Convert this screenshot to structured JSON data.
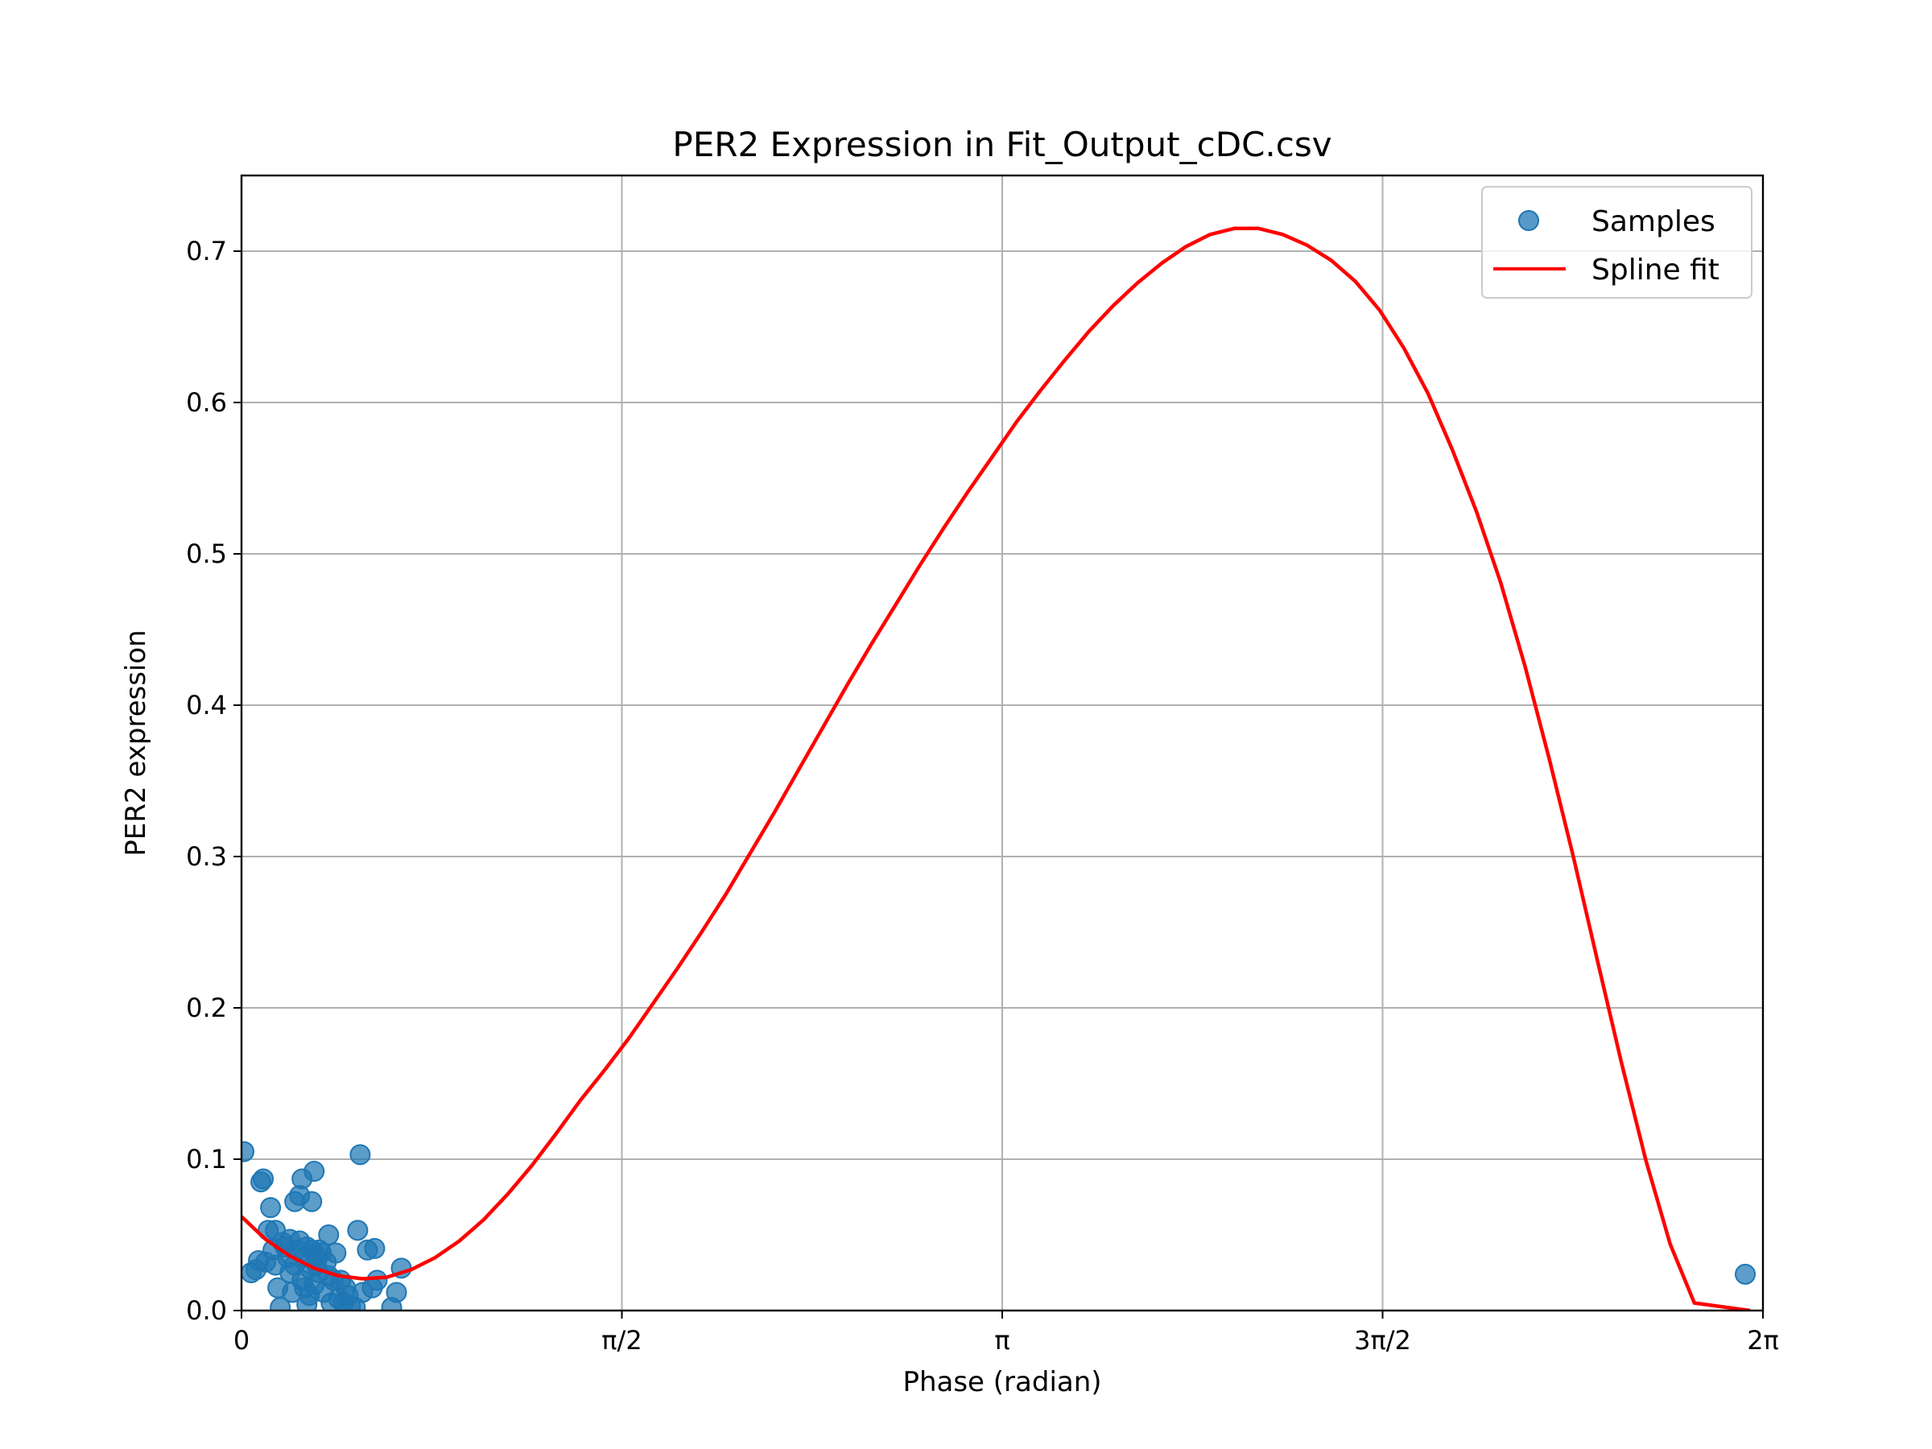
{
  "chart_data": {
    "type": "scatter",
    "title": "PER2 Expression in Fit_Output_cDC.csv",
    "xlabel": "Phase (radian)",
    "ylabel": "PER2 expression",
    "xlim": [
      0,
      6.283185
    ],
    "ylim": [
      0,
      0.75
    ],
    "grid": true,
    "legend_position": "top-right",
    "x_ticks": [
      {
        "value": 0,
        "label": "0"
      },
      {
        "value": 1.570796,
        "label": "π/2"
      },
      {
        "value": 3.141593,
        "label": "π"
      },
      {
        "value": 4.712389,
        "label": "3π/2"
      },
      {
        "value": 6.283185,
        "label": "2π"
      }
    ],
    "y_ticks": [
      {
        "value": 0.0,
        "label": "0.0"
      },
      {
        "value": 0.1,
        "label": "0.1"
      },
      {
        "value": 0.2,
        "label": "0.2"
      },
      {
        "value": 0.3,
        "label": "0.3"
      },
      {
        "value": 0.4,
        "label": "0.4"
      },
      {
        "value": 0.5,
        "label": "0.5"
      },
      {
        "value": 0.6,
        "label": "0.6"
      },
      {
        "value": 0.7,
        "label": "0.7"
      }
    ],
    "series": [
      {
        "name": "Samples",
        "kind": "scatter",
        "color": "#1f77b4",
        "points": [
          [
            0.01,
            0.105
          ],
          [
            0.04,
            0.025
          ],
          [
            0.06,
            0.027
          ],
          [
            0.07,
            0.033
          ],
          [
            0.08,
            0.085
          ],
          [
            0.09,
            0.087
          ],
          [
            0.1,
            0.032
          ],
          [
            0.11,
            0.053
          ],
          [
            0.12,
            0.068
          ],
          [
            0.13,
            0.04
          ],
          [
            0.14,
            0.03
          ],
          [
            0.14,
            0.053
          ],
          [
            0.15,
            0.015
          ],
          [
            0.16,
            0.002
          ],
          [
            0.17,
            0.045
          ],
          [
            0.18,
            0.042
          ],
          [
            0.19,
            0.035
          ],
          [
            0.2,
            0.025
          ],
          [
            0.2,
            0.047
          ],
          [
            0.21,
            0.012
          ],
          [
            0.22,
            0.03
          ],
          [
            0.22,
            0.072
          ],
          [
            0.23,
            0.04
          ],
          [
            0.24,
            0.046
          ],
          [
            0.24,
            0.076
          ],
          [
            0.25,
            0.087
          ],
          [
            0.25,
            0.02
          ],
          [
            0.26,
            0.035
          ],
          [
            0.26,
            0.015
          ],
          [
            0.27,
            0.042
          ],
          [
            0.27,
            0.004
          ],
          [
            0.28,
            0.028
          ],
          [
            0.28,
            0.01
          ],
          [
            0.29,
            0.072
          ],
          [
            0.29,
            0.04
          ],
          [
            0.3,
            0.092
          ],
          [
            0.3,
            0.017
          ],
          [
            0.31,
            0.03
          ],
          [
            0.31,
            0.036
          ],
          [
            0.32,
            0.025
          ],
          [
            0.32,
            0.04
          ],
          [
            0.33,
            0.038
          ],
          [
            0.34,
            0.012
          ],
          [
            0.35,
            0.032
          ],
          [
            0.36,
            0.05
          ],
          [
            0.36,
            0.023
          ],
          [
            0.37,
            0.005
          ],
          [
            0.38,
            0.02
          ],
          [
            0.39,
            0.038
          ],
          [
            0.4,
            0.008
          ],
          [
            0.41,
            0.02
          ],
          [
            0.42,
            0.005
          ],
          [
            0.43,
            0.015
          ],
          [
            0.44,
            0.01
          ],
          [
            0.45,
            0.003
          ],
          [
            0.47,
            0.002
          ],
          [
            0.48,
            0.053
          ],
          [
            0.49,
            0.103
          ],
          [
            0.5,
            0.012
          ],
          [
            0.52,
            0.04
          ],
          [
            0.54,
            0.015
          ],
          [
            0.55,
            0.041
          ],
          [
            0.56,
            0.02
          ],
          [
            0.62,
            0.002
          ],
          [
            0.64,
            0.012
          ],
          [
            0.66,
            0.028
          ],
          [
            6.21,
            0.024
          ]
        ]
      },
      {
        "name": "Spline fit",
        "kind": "line",
        "color": "#ff0000",
        "points": [
          [
            0.0,
            0.062
          ],
          [
            0.1,
            0.047
          ],
          [
            0.2,
            0.036
          ],
          [
            0.3,
            0.028
          ],
          [
            0.4,
            0.023
          ],
          [
            0.5,
            0.021
          ],
          [
            0.6,
            0.022
          ],
          [
            0.7,
            0.027
          ],
          [
            0.8,
            0.035
          ],
          [
            0.9,
            0.046
          ],
          [
            1.0,
            0.06
          ],
          [
            1.1,
            0.077
          ],
          [
            1.2,
            0.096
          ],
          [
            1.3,
            0.117
          ],
          [
            1.4,
            0.139
          ],
          [
            1.5,
            0.159
          ],
          [
            1.6,
            0.18
          ],
          [
            1.7,
            0.203
          ],
          [
            1.8,
            0.226
          ],
          [
            1.9,
            0.25
          ],
          [
            2.0,
            0.275
          ],
          [
            2.1,
            0.302
          ],
          [
            2.2,
            0.329
          ],
          [
            2.3,
            0.357
          ],
          [
            2.4,
            0.385
          ],
          [
            2.5,
            0.413
          ],
          [
            2.6,
            0.44
          ],
          [
            2.7,
            0.466
          ],
          [
            2.8,
            0.492
          ],
          [
            2.9,
            0.517
          ],
          [
            3.0,
            0.541
          ],
          [
            3.1,
            0.564
          ],
          [
            3.2,
            0.587
          ],
          [
            3.3,
            0.608
          ],
          [
            3.4,
            0.628
          ],
          [
            3.5,
            0.647
          ],
          [
            3.6,
            0.664
          ],
          [
            3.7,
            0.679
          ],
          [
            3.8,
            0.692
          ],
          [
            3.9,
            0.703
          ],
          [
            4.0,
            0.711
          ],
          [
            4.1,
            0.715
          ],
          [
            4.2,
            0.715
          ],
          [
            4.3,
            0.711
          ],
          [
            4.4,
            0.704
          ],
          [
            4.5,
            0.694
          ],
          [
            4.6,
            0.68
          ],
          [
            4.7,
            0.661
          ],
          [
            4.8,
            0.636
          ],
          [
            4.9,
            0.606
          ],
          [
            5.0,
            0.569
          ],
          [
            5.1,
            0.528
          ],
          [
            5.2,
            0.481
          ],
          [
            5.3,
            0.426
          ],
          [
            5.4,
            0.365
          ],
          [
            5.5,
            0.3
          ],
          [
            5.6,
            0.231
          ],
          [
            5.7,
            0.163
          ],
          [
            5.8,
            0.099
          ],
          [
            5.9,
            0.044
          ],
          [
            6.0,
            0.005
          ],
          [
            6.23,
            0.0
          ]
        ]
      }
    ]
  }
}
